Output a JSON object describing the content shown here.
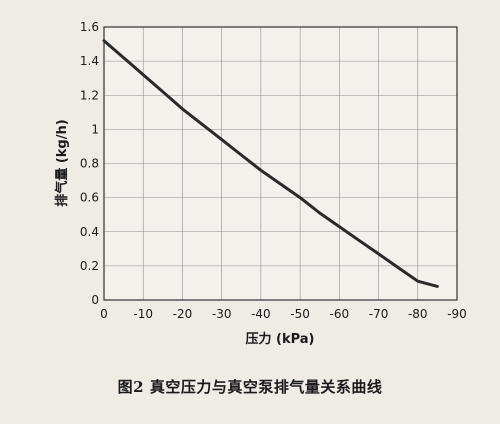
{
  "caption": "图2   真空压力与真空泵排气量关系曲线",
  "chart_data": {
    "type": "line",
    "title": "",
    "xlabel": "压力 (kPa)",
    "ylabel": "排气量 (kg/h)",
    "xlim": [
      0,
      -90
    ],
    "ylim": [
      0,
      1.6
    ],
    "x_ticks": [
      "0",
      "-10",
      "-20",
      "-30",
      "-40",
      "-50",
      "-60",
      "-70",
      "-80",
      "-90"
    ],
    "y_ticks": [
      "0",
      "0.2",
      "0.4",
      "0.6",
      "0.8",
      "1",
      "1.2",
      "1.4",
      "1.6"
    ],
    "grid": true,
    "series": [
      {
        "x": [
          0,
          -5,
          -10,
          -15,
          -20,
          -25,
          -30,
          -35,
          -40,
          -45,
          -50,
          -55,
          -60,
          -65,
          -70,
          -75,
          -80,
          -85
        ],
        "y": [
          1.52,
          1.42,
          1.32,
          1.22,
          1.12,
          1.03,
          0.94,
          0.85,
          0.76,
          0.68,
          0.6,
          0.51,
          0.43,
          0.35,
          0.27,
          0.19,
          0.11,
          0.08
        ],
        "color": "#2a2a2a"
      }
    ]
  }
}
